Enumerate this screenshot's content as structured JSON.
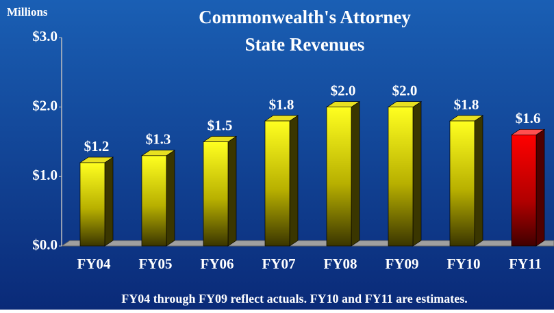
{
  "chart_data": {
    "type": "bar3d",
    "title": "Commonwealth's Attorney",
    "subtitle": "State Revenues",
    "y_axis_label": "Millions",
    "categories": [
      "FY04",
      "FY05",
      "FY06",
      "FY07",
      "FY08",
      "FY09",
      "FY10",
      "FY11"
    ],
    "values": [
      1.2,
      1.3,
      1.5,
      1.8,
      2.0,
      2.0,
      1.8,
      1.6
    ],
    "value_labels": [
      "$1.2",
      "$1.3",
      "$1.5",
      "$1.8",
      "$2.0",
      "$2.0",
      "$1.8",
      "$1.6"
    ],
    "colors": [
      "#ffff00",
      "#ffff00",
      "#ffff00",
      "#ffff00",
      "#ffff00",
      "#ffff00",
      "#ffff00",
      "#ff0000"
    ],
    "ylim": [
      0,
      3
    ],
    "yticks": [
      {
        "value": 0,
        "label": "$0.0"
      },
      {
        "value": 1,
        "label": "$1.0"
      },
      {
        "value": 2,
        "label": "$2.0"
      },
      {
        "value": 3,
        "label": "$3.0"
      }
    ],
    "grid": false,
    "footnote": "FY04 through FY09 reflect actuals.  FY10 and FY11 are estimates."
  }
}
